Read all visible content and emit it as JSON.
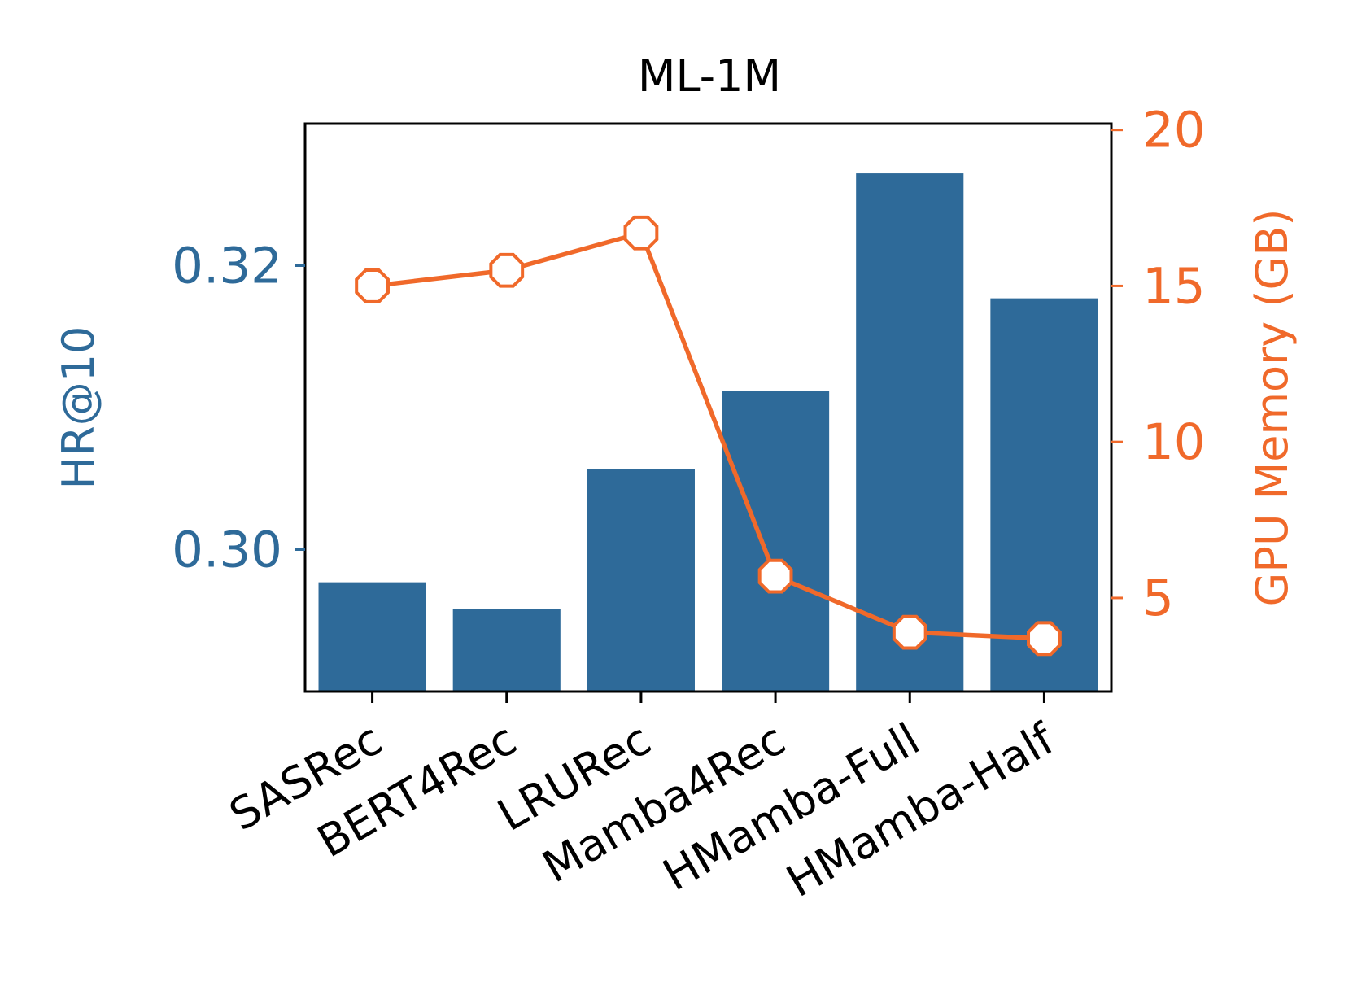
{
  "chart_data": {
    "type": "bar",
    "title": "ML-1M",
    "categories": [
      "SASRec",
      "BERT4Rec",
      "LRURec",
      "Mamba4Rec",
      "HMamba-Full",
      "HMamba-Half"
    ],
    "series": [
      {
        "name": "HR@10",
        "type": "bar",
        "axis": "left",
        "values": [
          0.2977,
          0.2958,
          0.3057,
          0.3112,
          0.3265,
          0.3177
        ]
      },
      {
        "name": "GPU Memory (GB)",
        "type": "line",
        "axis": "right",
        "values": [
          15.0,
          15.5,
          16.7,
          5.7,
          3.9,
          3.7
        ]
      }
    ],
    "ylabel_left": "HR@10",
    "ylabel_right": "GPU Memory (GB)",
    "ylim_left": [
      0.29,
      0.33
    ],
    "ylim_right": [
      2.0,
      20.2
    ],
    "yticks_left": [
      0.3,
      0.32
    ],
    "yticks_left_labels": [
      "0.30",
      "0.32"
    ],
    "yticks_right": [
      5,
      10,
      15,
      20
    ],
    "yticks_right_labels": [
      "5",
      "10",
      "15",
      "20"
    ],
    "grid": false,
    "colors": {
      "bar": "#2e6a99",
      "line": "#f0692a",
      "marker_fill": "#ffffff",
      "axes": "#000000",
      "left_axis": "#2e6a99",
      "right_axis": "#f0692a"
    }
  }
}
